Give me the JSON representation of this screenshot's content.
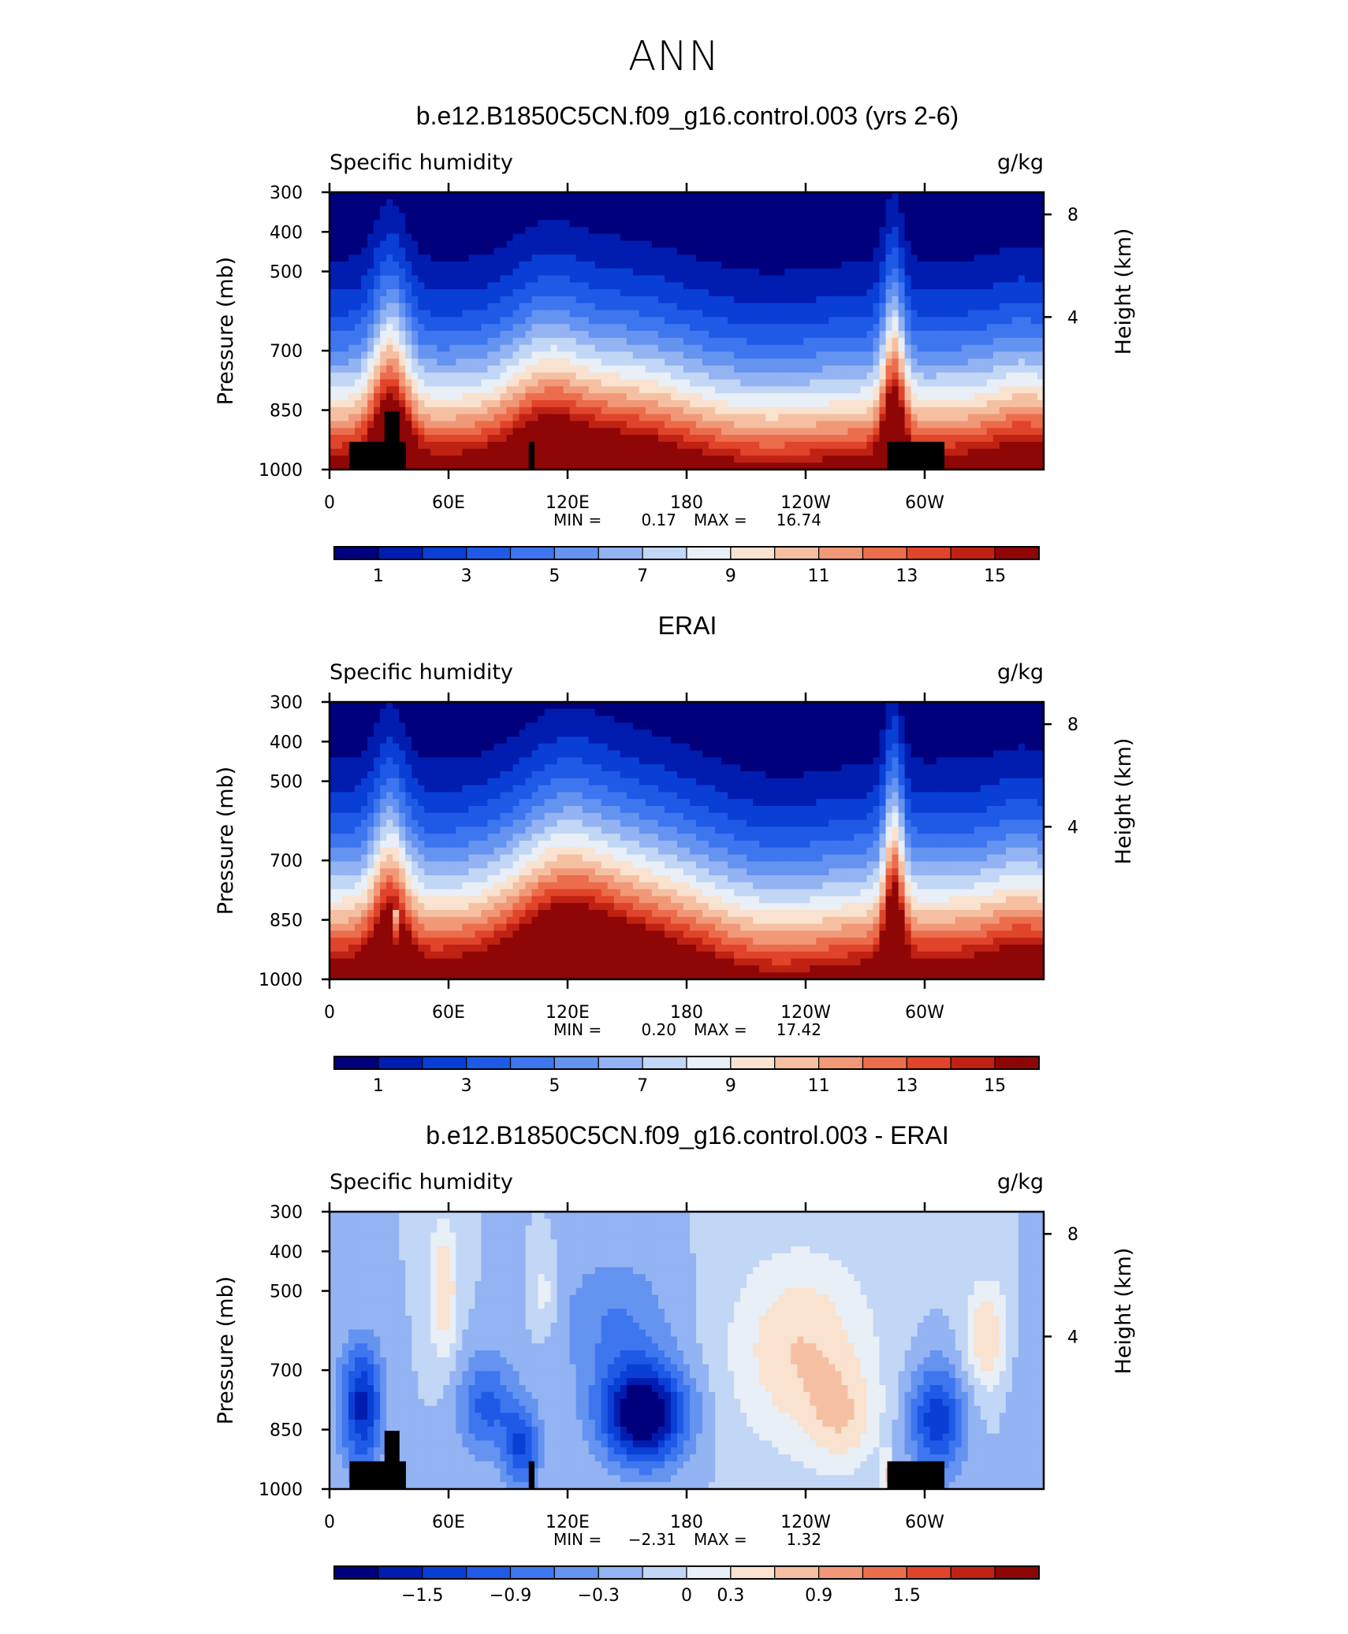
{
  "title": "ANN",
  "colors": {
    "sequential": [
      "#00007d",
      "#001db0",
      "#0a3fd6",
      "#1e5ae6",
      "#3d76ee",
      "#6593f0",
      "#93b3f2",
      "#c2d6f5",
      "#e8eff7",
      "#f9e2cf",
      "#f5c0a2",
      "#f09878",
      "#eb6d4c",
      "#e0442a",
      "#bf2213",
      "#8e0606"
    ],
    "diverging": [
      "#00007d",
      "#001db0",
      "#0a3fd6",
      "#1e5ae6",
      "#3d76ee",
      "#6593f0",
      "#93b3f2",
      "#c2d6f5",
      "#e8eff7",
      "#f9e2cf",
      "#f5c0a2",
      "#f09878",
      "#eb6d4c",
      "#e0442a",
      "#bf2213",
      "#8e0606"
    ],
    "topography": "#000000"
  },
  "chart_data": [
    {
      "type": "heatmap",
      "title": "b.e12.B1850C5CN.f09_g16.control.003 (yrs 2-6)",
      "left_label": "Specific humidity",
      "right_label": "g/kg",
      "ylabel": "Pressure (mb)",
      "y2label": "Height (km)",
      "x_ticks": [
        "0",
        "60E",
        "120E",
        "180",
        "120W",
        "60W"
      ],
      "y_ticks": [
        "300",
        "400",
        "500",
        "700",
        "850",
        "1000"
      ],
      "y2_ticks": [
        "8",
        "4"
      ],
      "min_label": "MIN =",
      "min_value": "0.17",
      "max_label": "MAX =",
      "max_value": "16.74",
      "colorbar_labels": [
        "1",
        "3",
        "5",
        "7",
        "9",
        "11",
        "13",
        "15"
      ],
      "field": "model"
    },
    {
      "type": "heatmap",
      "title": "ERAI",
      "left_label": "Specific humidity",
      "right_label": "g/kg",
      "ylabel": "Pressure (mb)",
      "y2label": "Height (km)",
      "x_ticks": [
        "0",
        "60E",
        "120E",
        "180",
        "120W",
        "60W"
      ],
      "y_ticks": [
        "300",
        "400",
        "500",
        "700",
        "850",
        "1000"
      ],
      "y2_ticks": [
        "8",
        "4"
      ],
      "min_label": "MIN =",
      "min_value": "0.20",
      "max_label": "MAX =",
      "max_value": "17.42",
      "colorbar_labels": [
        "1",
        "3",
        "5",
        "7",
        "9",
        "11",
        "13",
        "15"
      ],
      "field": "obs"
    },
    {
      "type": "heatmap",
      "title": "b.e12.B1850C5CN.f09_g16.control.003 - ERAI",
      "left_label": "Specific humidity",
      "right_label": "g/kg",
      "ylabel": "Pressure (mb)",
      "y2label": "Height (km)",
      "x_ticks": [
        "0",
        "60E",
        "120E",
        "180",
        "120W",
        "60W"
      ],
      "y_ticks": [
        "300",
        "400",
        "500",
        "700",
        "850",
        "1000"
      ],
      "y2_ticks": [
        "8",
        "4"
      ],
      "min_label": "MIN =",
      "min_value": "−2.31",
      "max_label": "MAX =",
      "max_value": "1.32",
      "colorbar_labels": [
        "−1.5",
        "−0.9",
        "−0.3",
        "0",
        "0.3",
        "0.9",
        "1.5"
      ],
      "field": "diff"
    }
  ]
}
